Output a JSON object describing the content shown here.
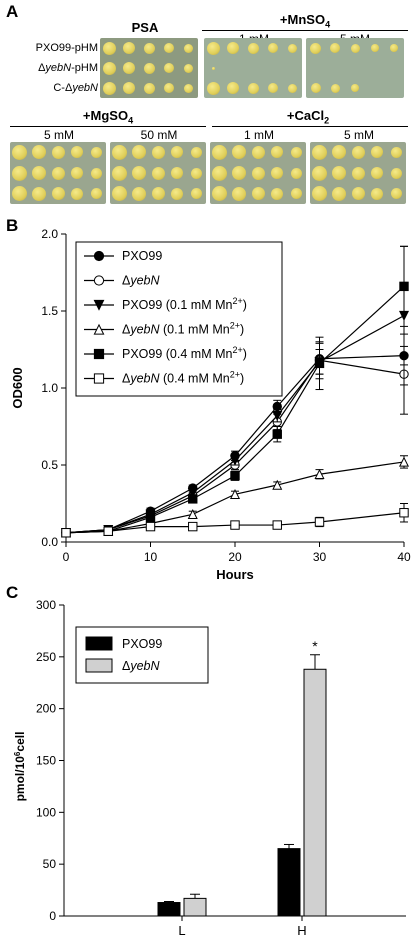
{
  "panel_a": {
    "letter": "A",
    "psa_label": "PSA",
    "mn_label": "+MnSO",
    "mn_sub": "4",
    "mg_label": "+MgSO",
    "mg_sub": "4",
    "ca_label": "+CaCl",
    "ca_sub": "2",
    "mn_conc": [
      "1 mM",
      "5 mM"
    ],
    "mg_conc": [
      "5 mM",
      "50 mM"
    ],
    "ca_conc": [
      "1 mM",
      "5 mM"
    ],
    "row_labels": [
      {
        "pre": "PXO99-pHM",
        "ital": "",
        "post": ""
      },
      {
        "pre": "Δ",
        "ital": "yebN",
        "post": "-pHM"
      },
      {
        "pre": "C-Δ",
        "ital": "yebN",
        "post": ""
      }
    ],
    "colors": {
      "plate": "#8d9a80",
      "colony": "#e0cf5a"
    }
  },
  "panel_b": {
    "letter": "B",
    "chart_data": {
      "type": "line",
      "xlabel": "Hours",
      "ylabel": "OD600",
      "xlim": [
        0,
        40
      ],
      "ylim": [
        0,
        2.0
      ],
      "xticks": [
        "0",
        "10",
        "20",
        "30",
        "40"
      ],
      "yticks": [
        "0.0",
        "0.5",
        "1.0",
        "1.5",
        "2.0"
      ],
      "x": [
        0,
        5,
        10,
        15,
        20,
        25,
        30,
        40
      ],
      "legend_position": "top-left",
      "series": [
        {
          "name": "PXO99",
          "marker": "filled-circle",
          "values": [
            0.06,
            0.08,
            0.2,
            0.35,
            0.56,
            0.88,
            1.19,
            1.21
          ],
          "errors": [
            0.01,
            0.01,
            0.02,
            0.02,
            0.03,
            0.04,
            0.1,
            0.06
          ]
        },
        {
          "name": "ΔyebN",
          "marker": "open-circle",
          "values": [
            0.06,
            0.08,
            0.17,
            0.3,
            0.5,
            0.78,
            1.18,
            1.09
          ],
          "errors": [
            0.01,
            0.01,
            0.02,
            0.02,
            0.03,
            0.05,
            0.12,
            0.26
          ]
        },
        {
          "name": "PXO99 (0.1 mM Mn2+)",
          "marker": "filled-triangle-down",
          "values": [
            0.06,
            0.08,
            0.18,
            0.32,
            0.53,
            0.82,
            1.17,
            1.47
          ],
          "errors": [
            0.01,
            0.01,
            0.02,
            0.02,
            0.03,
            0.04,
            0.08,
            0.45
          ]
        },
        {
          "name": "ΔyebN (0.1 mM Mn2+)",
          "marker": "open-triangle-up",
          "values": [
            0.06,
            0.07,
            0.12,
            0.18,
            0.31,
            0.37,
            0.44,
            0.52
          ],
          "errors": [
            0.01,
            0.01,
            0.01,
            0.02,
            0.02,
            0.02,
            0.03,
            0.04
          ]
        },
        {
          "name": "PXO99 (0.4 mM Mn2+)",
          "marker": "filled-square",
          "values": [
            0.06,
            0.07,
            0.16,
            0.28,
            0.43,
            0.7,
            1.16,
            1.66
          ],
          "errors": [
            0.01,
            0.01,
            0.02,
            0.02,
            0.03,
            0.05,
            0.17,
            0.26
          ]
        },
        {
          "name": "ΔyebN (0.4 mM Mn2+)",
          "marker": "open-square",
          "values": [
            0.06,
            0.07,
            0.1,
            0.1,
            0.11,
            0.11,
            0.13,
            0.19
          ],
          "errors": [
            0.01,
            0.01,
            0.01,
            0.01,
            0.01,
            0.01,
            0.03,
            0.06
          ]
        }
      ]
    }
  },
  "panel_c": {
    "letter": "C",
    "chart_data": {
      "type": "bar",
      "categories": [
        "L",
        "H"
      ],
      "ylabel": "pmol/10^6 cell",
      "ylim": [
        0,
        300
      ],
      "yticks": [
        "0",
        "50",
        "100",
        "150",
        "200",
        "250",
        "300"
      ],
      "legend_position": "top-left",
      "series": [
        {
          "name": "PXO99",
          "color": "#000000",
          "values": [
            13,
            65
          ],
          "errors": [
            1,
            4
          ]
        },
        {
          "name": "ΔyebN",
          "color": "#d0d0d0",
          "values": [
            17,
            238
          ],
          "errors": [
            4,
            14
          ]
        }
      ],
      "annotations": [
        {
          "text": "*",
          "category": "H",
          "series": "ΔyebN"
        }
      ]
    }
  }
}
